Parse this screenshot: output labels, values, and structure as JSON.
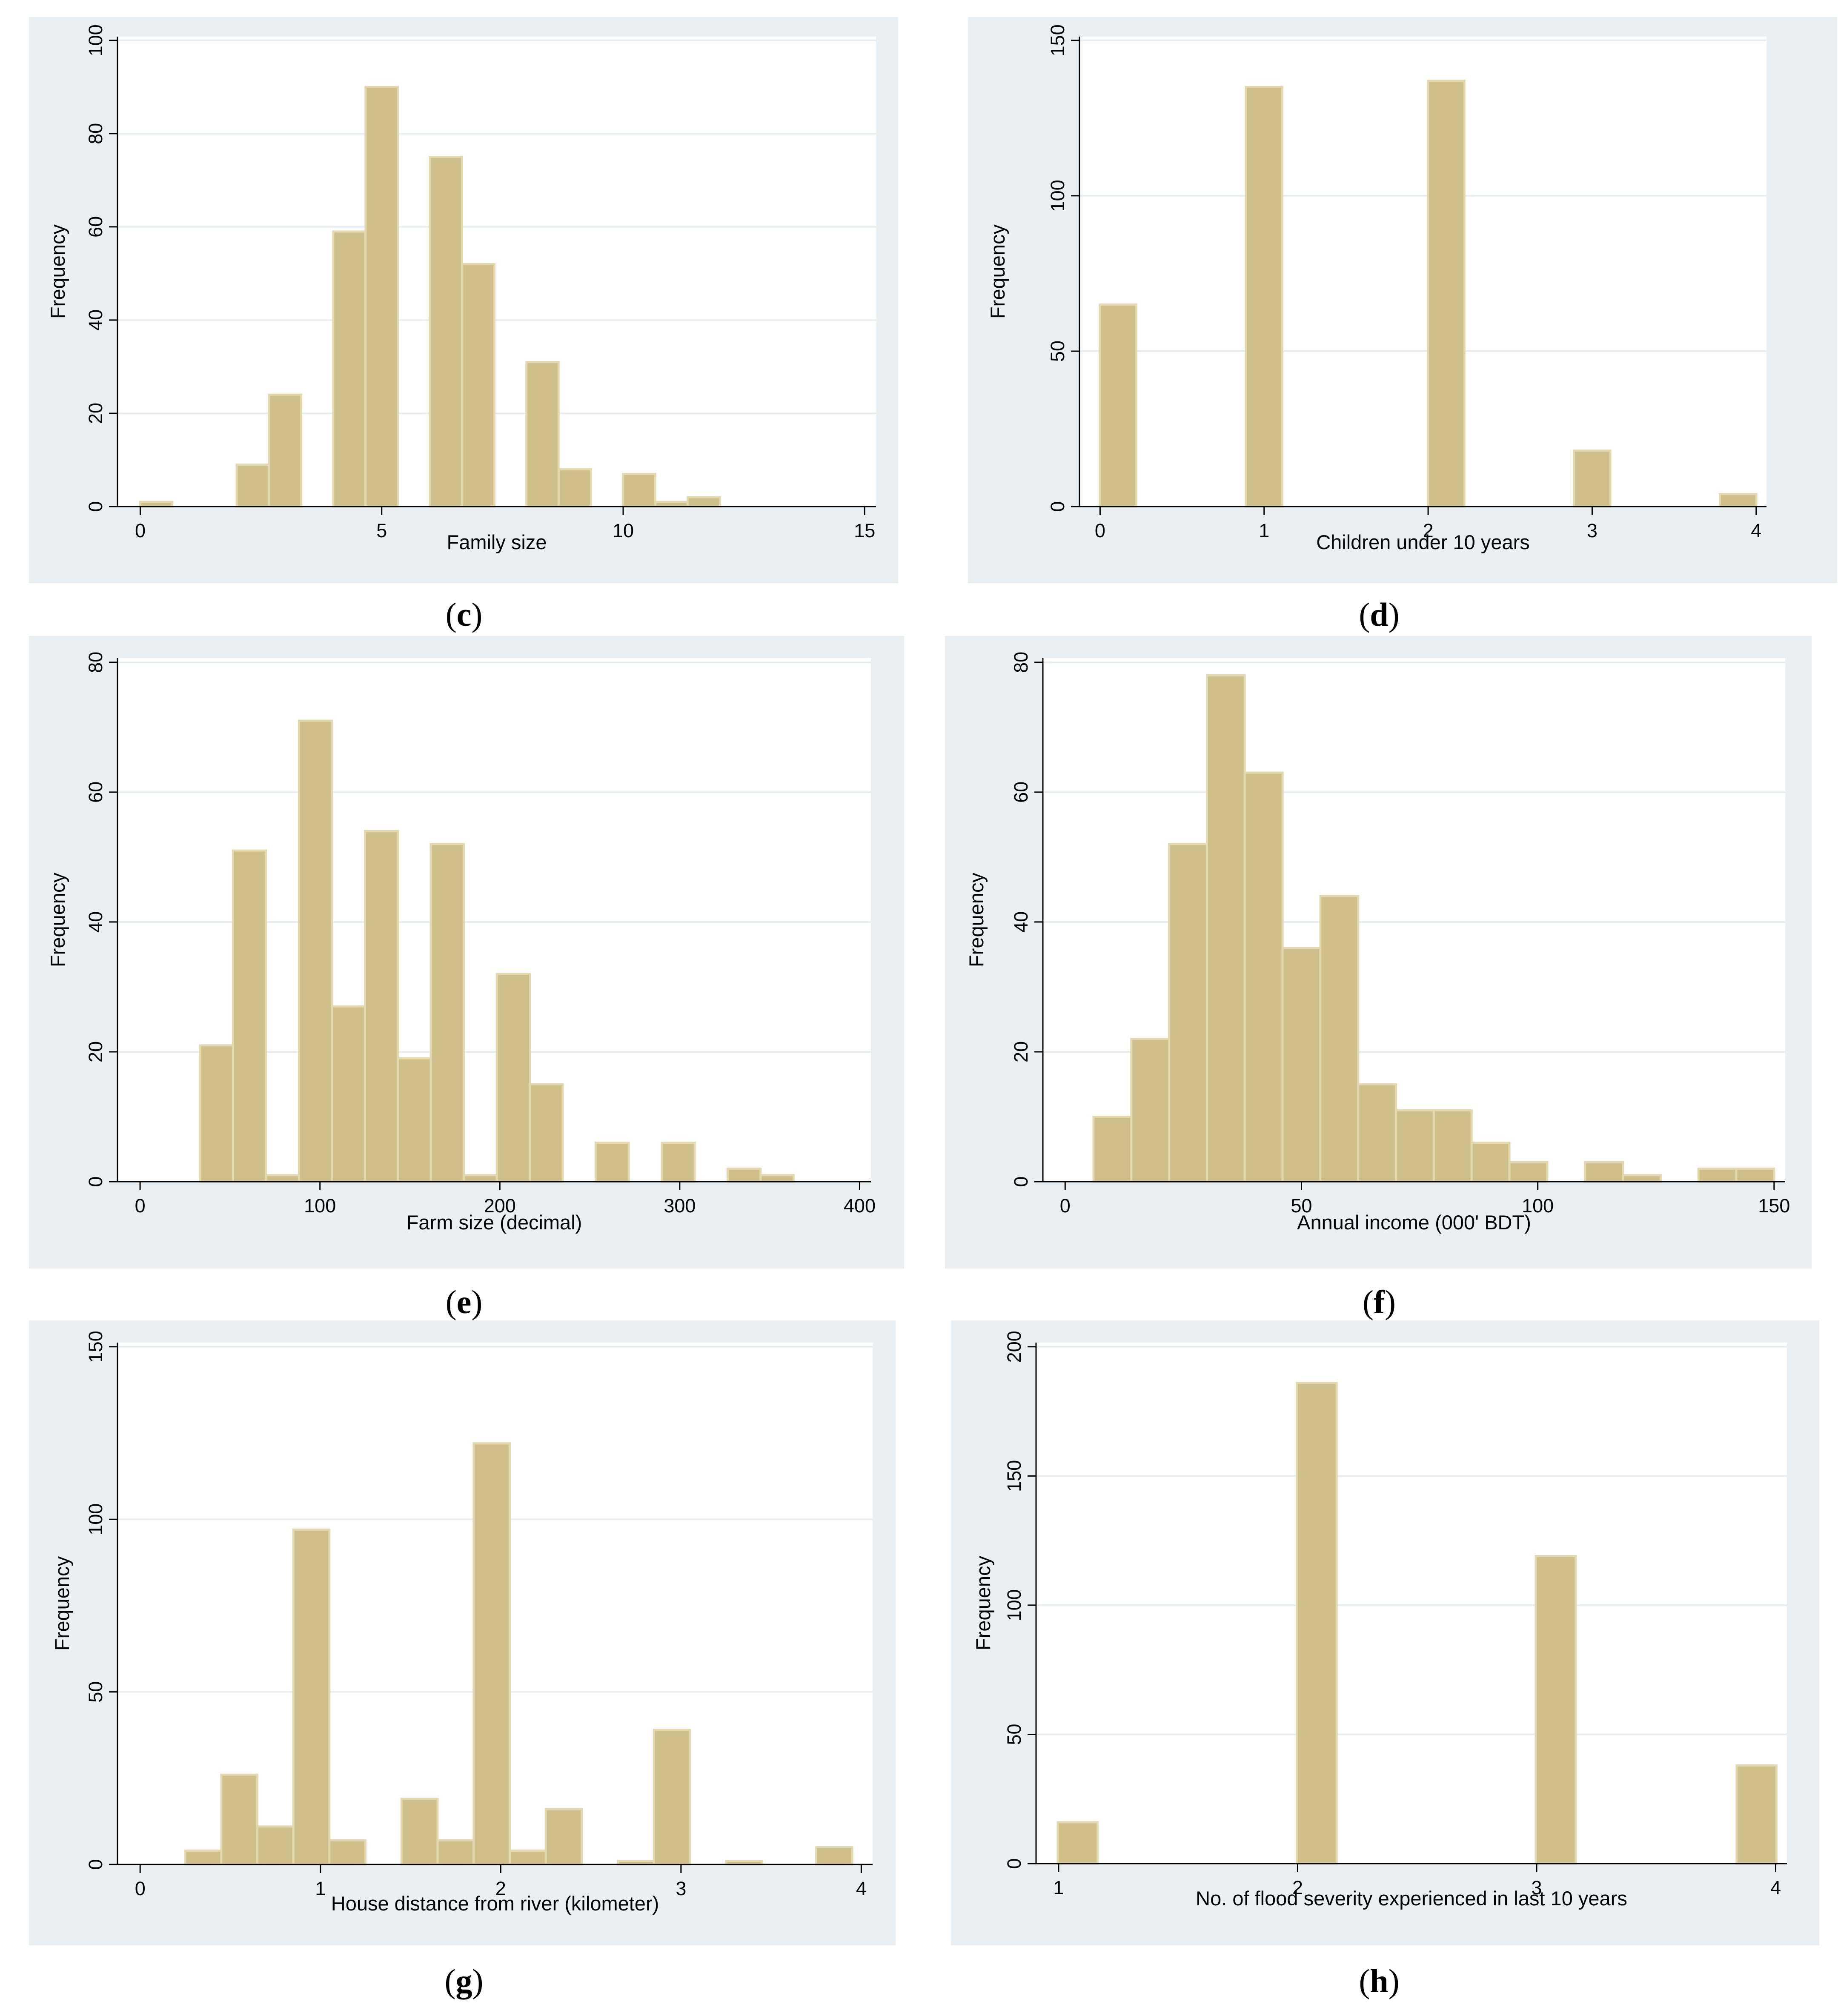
{
  "chart_data": [
    {
      "panel": "c",
      "type": "bar",
      "title": "",
      "xlabel": "Family size",
      "ylabel": "Frequency",
      "xlim": [
        0,
        15
      ],
      "ylim": [
        0,
        100
      ],
      "xticks": [
        0,
        5,
        10,
        15
      ],
      "yticks": [
        0,
        20,
        40,
        60,
        80,
        100
      ],
      "bin_width": 0.6667,
      "bars": [
        {
          "x": 0.33,
          "value": 1
        },
        {
          "x": 2.33,
          "value": 9
        },
        {
          "x": 3.0,
          "value": 24
        },
        {
          "x": 4.33,
          "value": 59
        },
        {
          "x": 5.0,
          "value": 90
        },
        {
          "x": 6.33,
          "value": 75
        },
        {
          "x": 7.0,
          "value": 52
        },
        {
          "x": 8.33,
          "value": 31
        },
        {
          "x": 9.0,
          "value": 8
        },
        {
          "x": 10.33,
          "value": 7
        },
        {
          "x": 11.0,
          "value": 1
        },
        {
          "x": 11.67,
          "value": 2
        }
      ]
    },
    {
      "panel": "d",
      "type": "bar",
      "title": "",
      "xlabel": "Children under 10 years",
      "ylabel": "Frequency",
      "xlim": [
        0,
        4
      ],
      "ylim": [
        0,
        150
      ],
      "xticks": [
        0,
        1,
        2,
        3,
        4
      ],
      "yticks": [
        0,
        50,
        100,
        150
      ],
      "bin_width": 0.2222,
      "bars": [
        {
          "x": 0.11,
          "value": 65
        },
        {
          "x": 1.0,
          "value": 135
        },
        {
          "x": 2.11,
          "value": 137
        },
        {
          "x": 3.0,
          "value": 18
        },
        {
          "x": 3.89,
          "value": 4
        }
      ]
    },
    {
      "panel": "e",
      "type": "bar",
      "title": "",
      "xlabel": "Farm size (decimal)",
      "ylabel": "Frequency",
      "xlim": [
        0,
        400
      ],
      "ylim": [
        0,
        80
      ],
      "xticks": [
        0,
        100,
        200,
        300,
        400
      ],
      "yticks": [
        0,
        20,
        40,
        60,
        80
      ],
      "bin_width": 18.33,
      "bars": [
        {
          "x": 42.5,
          "value": 21
        },
        {
          "x": 60.8,
          "value": 51
        },
        {
          "x": 79.2,
          "value": 1
        },
        {
          "x": 97.5,
          "value": 71
        },
        {
          "x": 115.8,
          "value": 27
        },
        {
          "x": 134.2,
          "value": 54
        },
        {
          "x": 152.5,
          "value": 19
        },
        {
          "x": 170.8,
          "value": 52
        },
        {
          "x": 189.2,
          "value": 1
        },
        {
          "x": 207.5,
          "value": 32
        },
        {
          "x": 225.8,
          "value": 15
        },
        {
          "x": 262.5,
          "value": 6
        },
        {
          "x": 299.2,
          "value": 6
        },
        {
          "x": 335.8,
          "value": 2
        },
        {
          "x": 354.2,
          "value": 1
        }
      ]
    },
    {
      "panel": "f",
      "type": "bar",
      "title": "",
      "xlabel": "Annual income (000' BDT)",
      "ylabel": "Frequency",
      "xlim": [
        0,
        150
      ],
      "ylim": [
        0,
        80
      ],
      "xticks": [
        0,
        50,
        100,
        150
      ],
      "yticks": [
        0,
        20,
        40,
        60,
        80
      ],
      "bin_width": 8.0,
      "bars": [
        {
          "x": 10.0,
          "value": 10
        },
        {
          "x": 18.0,
          "value": 22
        },
        {
          "x": 26.0,
          "value": 52
        },
        {
          "x": 34.0,
          "value": 78
        },
        {
          "x": 42.0,
          "value": 63
        },
        {
          "x": 50.0,
          "value": 36
        },
        {
          "x": 58.0,
          "value": 44
        },
        {
          "x": 66.0,
          "value": 15
        },
        {
          "x": 74.0,
          "value": 11
        },
        {
          "x": 82.0,
          "value": 11
        },
        {
          "x": 90.0,
          "value": 6
        },
        {
          "x": 98.0,
          "value": 3
        },
        {
          "x": 114.0,
          "value": 3
        },
        {
          "x": 122.0,
          "value": 1
        },
        {
          "x": 138.0,
          "value": 2
        },
        {
          "x": 146.0,
          "value": 2
        }
      ]
    },
    {
      "panel": "g",
      "type": "bar",
      "title": "",
      "xlabel": "House distance from river (kilometer)",
      "ylabel": "Frequency",
      "xlim": [
        0,
        4
      ],
      "ylim": [
        0,
        150
      ],
      "xticks": [
        0,
        1,
        2,
        3,
        4
      ],
      "yticks": [
        0,
        50,
        100,
        150
      ],
      "bin_width": 0.2,
      "bars": [
        {
          "x": 0.35,
          "value": 4
        },
        {
          "x": 0.55,
          "value": 26
        },
        {
          "x": 0.75,
          "value": 11
        },
        {
          "x": 0.95,
          "value": 97
        },
        {
          "x": 1.15,
          "value": 7
        },
        {
          "x": 1.55,
          "value": 19
        },
        {
          "x": 1.75,
          "value": 7
        },
        {
          "x": 1.95,
          "value": 122
        },
        {
          "x": 2.15,
          "value": 4
        },
        {
          "x": 2.35,
          "value": 16
        },
        {
          "x": 2.75,
          "value": 1
        },
        {
          "x": 2.95,
          "value": 39
        },
        {
          "x": 3.35,
          "value": 1
        },
        {
          "x": 3.85,
          "value": 5
        }
      ]
    },
    {
      "panel": "h",
      "type": "bar",
      "title": "",
      "xlabel": "No. of flood severity experienced in last 10 years",
      "ylabel": "Frequency",
      "xlim": [
        1,
        4
      ],
      "ylim": [
        0,
        200
      ],
      "xticks": [
        1,
        2,
        3,
        4
      ],
      "yticks": [
        0,
        50,
        100,
        150,
        200
      ],
      "bin_width": 0.1667,
      "bars": [
        {
          "x": 1.08,
          "value": 16
        },
        {
          "x": 2.08,
          "value": 186
        },
        {
          "x": 3.08,
          "value": 119
        },
        {
          "x": 3.92,
          "value": 38
        }
      ]
    }
  ],
  "captions": [
    {
      "id": "c",
      "letter": "c"
    },
    {
      "id": "d",
      "letter": "d"
    },
    {
      "id": "e",
      "letter": "e"
    },
    {
      "id": "f",
      "letter": "f"
    },
    {
      "id": "g",
      "letter": "g"
    },
    {
      "id": "h",
      "letter": "h"
    }
  ],
  "colors": {
    "bar_fill": "#cfc08b",
    "bar_outline": "#e3d9af",
    "panel_background": "#e9eff2",
    "plot_background": "#ffffff",
    "gridline": "#e6eef2"
  }
}
